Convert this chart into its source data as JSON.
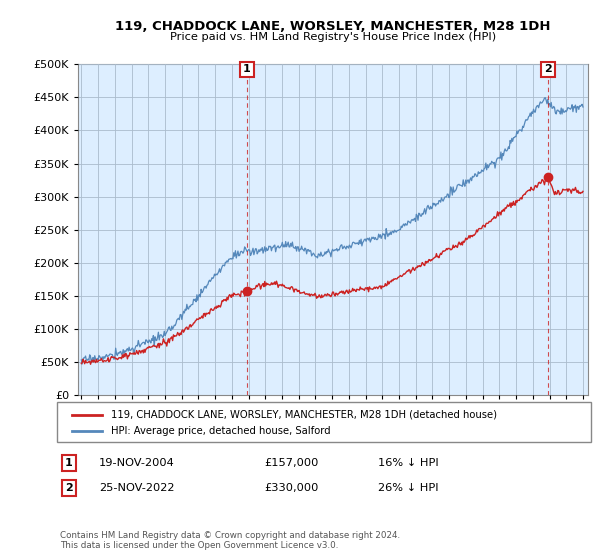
{
  "title": "119, CHADDOCK LANE, WORSLEY, MANCHESTER, M28 1DH",
  "subtitle": "Price paid vs. HM Land Registry's House Price Index (HPI)",
  "legend_label_red": "119, CHADDOCK LANE, WORSLEY, MANCHESTER, M28 1DH (detached house)",
  "legend_label_blue": "HPI: Average price, detached house, Salford",
  "annotation1_date": "19-NOV-2004",
  "annotation1_price": "£157,000",
  "annotation1_hpi": "16% ↓ HPI",
  "annotation2_date": "25-NOV-2022",
  "annotation2_price": "£330,000",
  "annotation2_hpi": "26% ↓ HPI",
  "footnote": "Contains HM Land Registry data © Crown copyright and database right 2024.\nThis data is licensed under the Open Government Licence v3.0.",
  "ylim": [
    0,
    500000
  ],
  "yticks": [
    0,
    50000,
    100000,
    150000,
    200000,
    250000,
    300000,
    350000,
    400000,
    450000,
    500000
  ],
  "background_color": "#ffffff",
  "plot_bg_color": "#ddeeff",
  "grid_color": "#aabbcc",
  "red_color": "#cc2222",
  "blue_color": "#5588bb",
  "sale1_year": 2004.9,
  "sale1_price": 157000,
  "sale2_year": 2022.9,
  "sale2_price": 330000
}
